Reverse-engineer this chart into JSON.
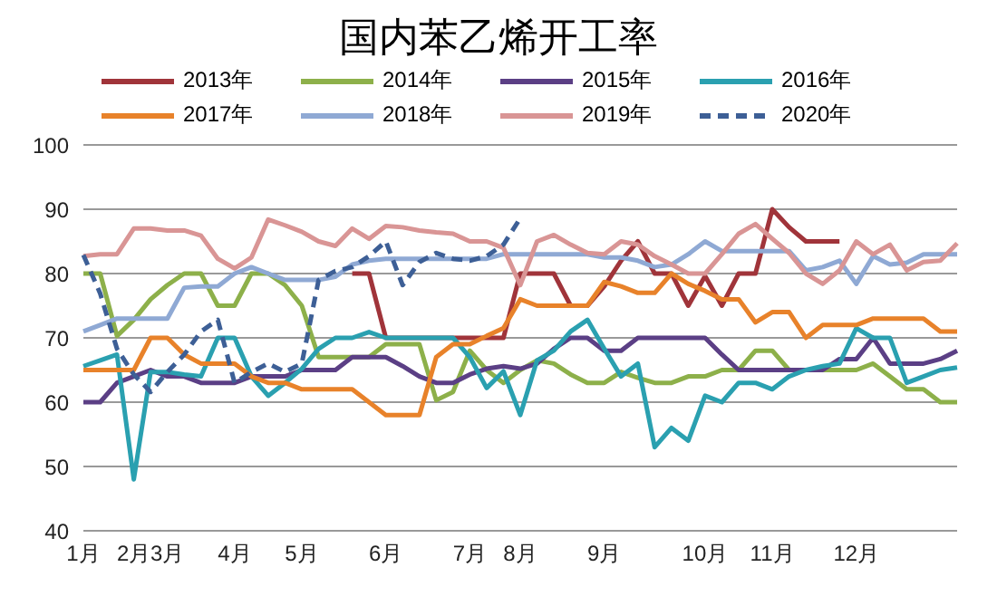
{
  "chart_data": {
    "type": "line",
    "title": "国内苯乙烯开工率",
    "categories": [
      "1月",
      null,
      null,
      "2月",
      null,
      "3月",
      null,
      null,
      null,
      "4月",
      null,
      null,
      null,
      "5月",
      null,
      null,
      null,
      null,
      "6月",
      null,
      null,
      null,
      null,
      "7月",
      null,
      null,
      "8月",
      null,
      null,
      null,
      null,
      "9月",
      null,
      null,
      null,
      null,
      null,
      "10月",
      null,
      null,
      null,
      "11月",
      null,
      null,
      null,
      null,
      "12月",
      null,
      null,
      null,
      null,
      null,
      null
    ],
    "series": [
      {
        "name": "2013年",
        "color": "#a0343a",
        "values": [
          null,
          null,
          null,
          null,
          null,
          null,
          null,
          null,
          null,
          null,
          null,
          null,
          null,
          null,
          null,
          null,
          80,
          80,
          70,
          70,
          70,
          70,
          70,
          70,
          70,
          70,
          80,
          80,
          80,
          75,
          75,
          78,
          82,
          85,
          80,
          80,
          75,
          79.6,
          75,
          80,
          80,
          90,
          87.2,
          85,
          85,
          85,
          null,
          null,
          null,
          null,
          null,
          null,
          null
        ]
      },
      {
        "name": "2014年",
        "color": "#8db04a",
        "values": [
          80,
          80,
          70.3,
          72.8,
          76,
          78.2,
          80,
          80,
          75,
          75,
          80,
          80,
          78.2,
          75,
          67,
          67,
          67,
          67,
          69,
          69,
          69,
          60.3,
          61.6,
          68,
          65,
          63,
          65,
          66.5,
          66,
          64.3,
          63,
          63,
          64.7,
          63.8,
          63,
          63,
          64,
          64,
          65,
          65,
          68,
          68,
          65,
          65,
          65,
          65,
          65,
          66,
          64,
          62,
          62,
          60,
          60
        ]
      },
      {
        "name": "2015年",
        "color": "#5b3f85",
        "values": [
          60,
          60,
          63,
          64,
          65,
          64,
          64,
          63,
          63,
          63,
          64,
          64,
          64,
          65,
          65,
          65,
          67,
          67,
          67,
          65.6,
          64,
          63,
          63,
          64.3,
          65.2,
          65.6,
          65.2,
          66,
          68.3,
          70,
          70,
          68,
          68,
          70,
          70,
          70,
          70,
          70,
          67.4,
          65,
          65,
          65,
          65,
          65,
          65,
          66.7,
          66.7,
          70,
          66,
          66,
          66,
          66.7,
          68
        ]
      },
      {
        "name": "2016年",
        "color": "#2aa0b0",
        "values": [
          65.6,
          66.5,
          67.4,
          48,
          64.7,
          64.7,
          64.3,
          64,
          70,
          70,
          64,
          61,
          63,
          65.2,
          68.3,
          70,
          70,
          70.9,
          70,
          70,
          70,
          70,
          70,
          67,
          62.2,
          64.8,
          58,
          66.5,
          68,
          71,
          72.8,
          68.3,
          64,
          66,
          53,
          56,
          54,
          61,
          60,
          63,
          63,
          62,
          64,
          65,
          65.6,
          66,
          71.5,
          70,
          70,
          63,
          64,
          65,
          65.4
        ]
      },
      {
        "name": "2017年",
        "color": "#e8822a",
        "values": [
          65,
          65,
          65,
          65,
          70,
          70,
          67.4,
          66,
          66,
          66,
          64,
          63,
          63,
          62,
          62,
          62,
          62,
          60,
          58,
          58,
          58,
          67,
          69,
          69,
          70.3,
          71.5,
          76,
          75,
          75,
          75,
          75,
          78.7,
          78,
          77,
          77,
          80,
          78.4,
          77.3,
          76,
          76,
          72.4,
          74,
          74,
          70,
          72,
          72,
          72,
          73,
          73,
          73,
          73,
          71,
          71
        ]
      },
      {
        "name": "2018年",
        "color": "#8fa9d4",
        "values": [
          71,
          72,
          73,
          73,
          73,
          73,
          77.8,
          78,
          78,
          80,
          81,
          80,
          79,
          79,
          79,
          79.5,
          81.4,
          82,
          82.3,
          82.3,
          82.3,
          82.3,
          82.3,
          82.3,
          82.3,
          83,
          83,
          83,
          83,
          83,
          83,
          82.5,
          82.5,
          82,
          81,
          81.4,
          83,
          85,
          83.5,
          83.5,
          83.5,
          83.5,
          83.5,
          80.5,
          81,
          82,
          78.4,
          82.7,
          81.4,
          81.7,
          83,
          83,
          83
        ]
      },
      {
        "name": "2019年",
        "color": "#d99595",
        "values": [
          82.7,
          83,
          83,
          87,
          87,
          86.7,
          86.7,
          85.9,
          82.3,
          80.8,
          82.5,
          88.4,
          87.5,
          86.5,
          85,
          84.3,
          87,
          85.4,
          87.4,
          87.2,
          86.7,
          86.4,
          86.2,
          85,
          85,
          84,
          78.2,
          85,
          86,
          84.5,
          83.2,
          83,
          85,
          84.5,
          82.7,
          81.4,
          80,
          80,
          83,
          86.2,
          87.7,
          85.4,
          83.2,
          80,
          78.4,
          80.5,
          85,
          83,
          84.5,
          80.5,
          81.8,
          82,
          84.7
        ]
      },
      {
        "name": "2020年",
        "color": "#3d5f96",
        "line_style": "dashed",
        "values": [
          82.9,
          76.9,
          68.3,
          64.3,
          61.6,
          64.7,
          67.4,
          71,
          72.8,
          63,
          64.7,
          66,
          64.7,
          66,
          79,
          80.4,
          81,
          82.7,
          85,
          78.2,
          81.8,
          83.2,
          82.3,
          82,
          82.7,
          84.5,
          88.6,
          null,
          null,
          null,
          null,
          null,
          null,
          null,
          null,
          null,
          null,
          null,
          null,
          null,
          null,
          null,
          null,
          null,
          null,
          null,
          null,
          null,
          null,
          null,
          null,
          null,
          null
        ]
      }
    ],
    "ylim": [
      40,
      100
    ],
    "yticks": [
      40,
      50,
      60,
      70,
      80,
      90,
      100
    ],
    "grid": "y",
    "legend": "top",
    "marker": "none",
    "line_style": "solid"
  }
}
